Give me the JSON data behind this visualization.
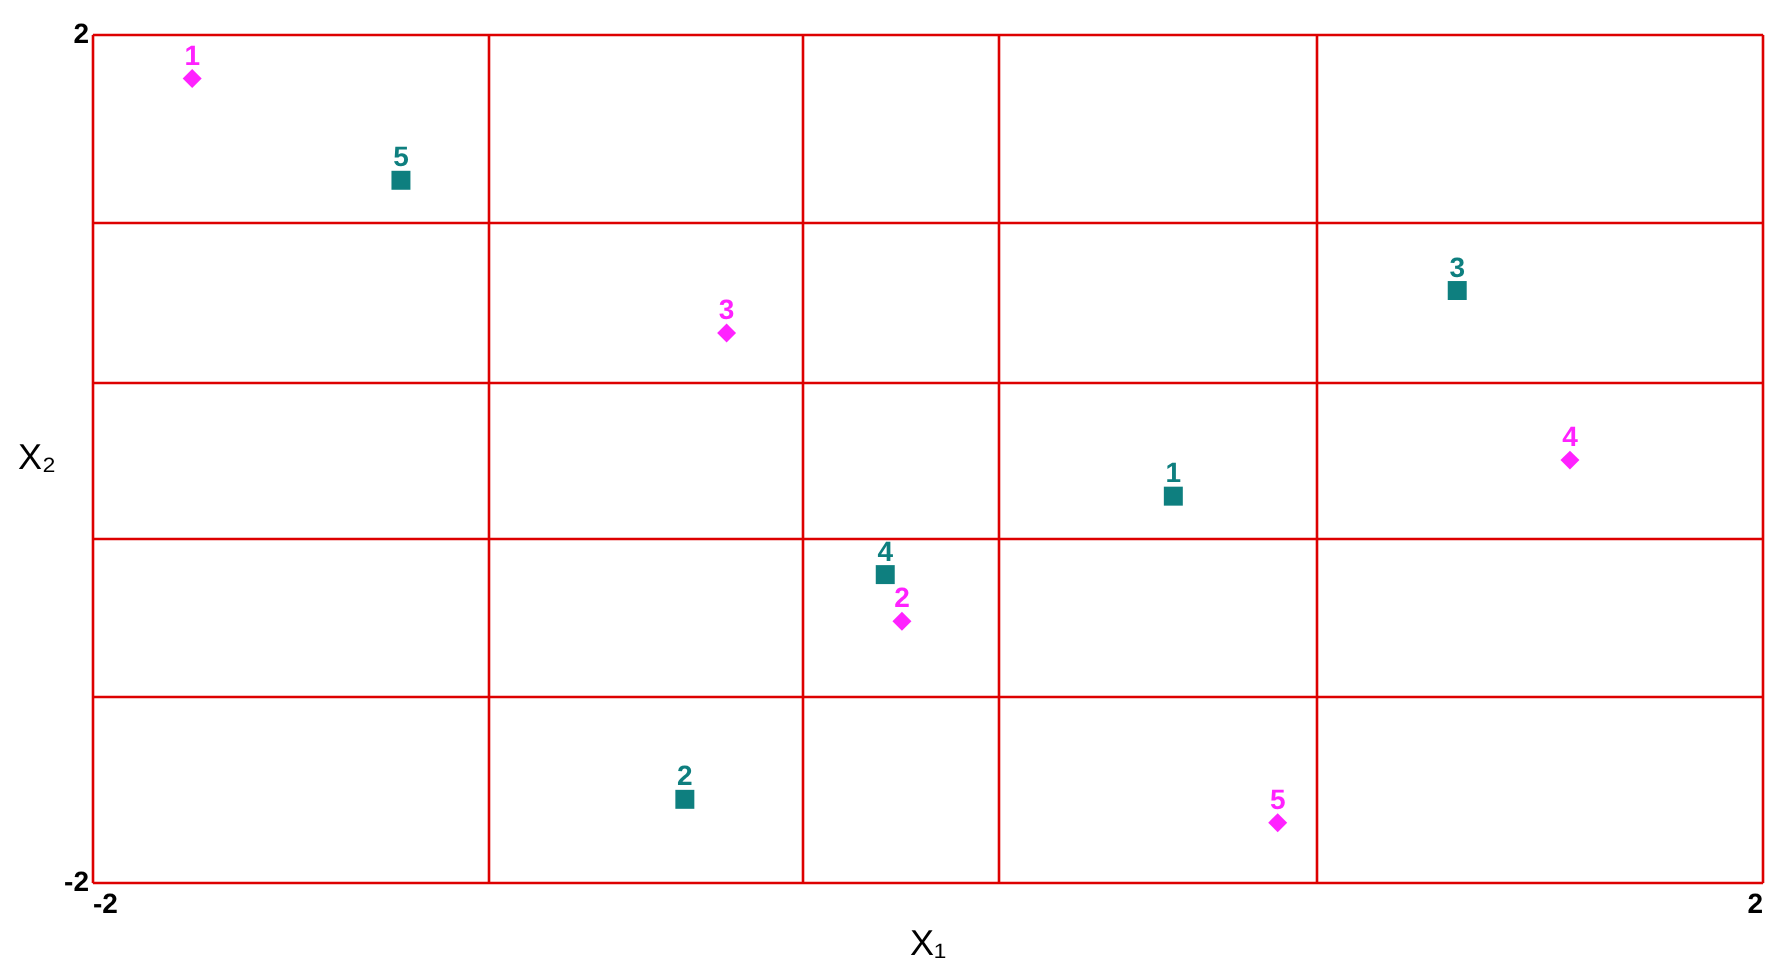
{
  "chart_data": {
    "type": "scatter",
    "xlabel": "X₁",
    "ylabel": "X₂",
    "xlim": [
      -2,
      2
    ],
    "ylim": [
      -2,
      2
    ],
    "xticks": [
      -2,
      {
        "value": -1.05,
        "label": null
      },
      {
        "value": -0.3,
        "label": null
      },
      {
        "value": 0.17,
        "label": null
      },
      {
        "value": 0.93,
        "label": null
      },
      2
    ],
    "yticks": [
      -2,
      {
        "value": -1.12,
        "label": null
      },
      {
        "value": -0.38,
        "label": null
      },
      {
        "value": 0.36,
        "label": null
      },
      {
        "value": 1.11,
        "label": null
      },
      2
    ],
    "grid": true,
    "series": [
      {
        "color": "#0e7f7f",
        "marker": "square",
        "x": [
          0.59,
          -0.58,
          1.27,
          -0.1,
          -1.26
        ],
        "values": [
          -0.18,
          -1.61,
          0.79,
          -0.55,
          1.31
        ]
      },
      {
        "color": "#ff22ff",
        "marker": "diamond",
        "x": [
          -1.76,
          -0.06,
          -0.48,
          1.54,
          0.84
        ],
        "values": [
          1.79,
          -0.77,
          0.59,
          -0.01,
          -1.72
        ]
      }
    ],
    "annotations": [
      {
        "text": "1",
        "x": 0.59,
        "y": -0.18
      },
      {
        "text": "2",
        "x": -0.58,
        "y": -1.61
      },
      {
        "text": "3",
        "x": 1.27,
        "y": 0.79
      },
      {
        "text": "4",
        "x": -0.1,
        "y": -0.55
      },
      {
        "text": "5",
        "x": -1.26,
        "y": 1.31
      },
      {
        "text": "1",
        "x": -1.76,
        "y": 1.79
      },
      {
        "text": "2",
        "x": -0.06,
        "y": -0.77
      },
      {
        "text": "3",
        "x": -0.48,
        "y": 0.59
      },
      {
        "text": "4",
        "x": 1.54,
        "y": -0.01
      },
      {
        "text": "5",
        "x": 0.84,
        "y": -1.72
      }
    ]
  }
}
